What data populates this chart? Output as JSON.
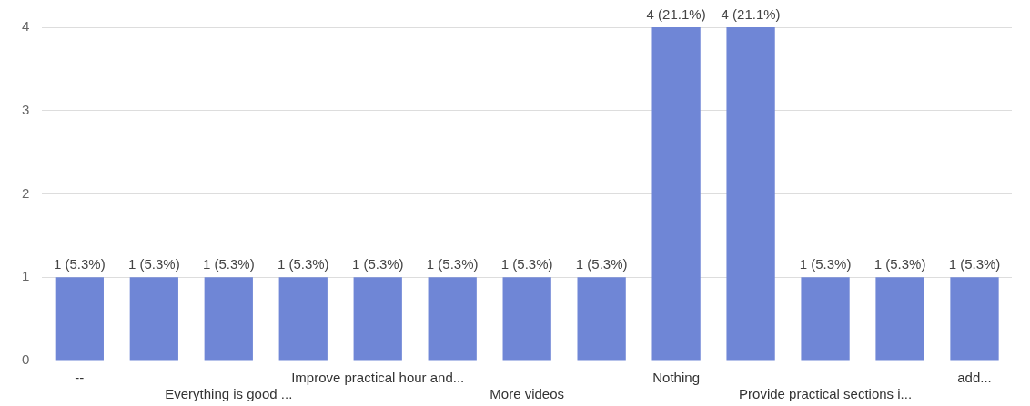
{
  "chart_data": {
    "type": "bar",
    "categories": [
      "--",
      null,
      "Everything is good ...",
      null,
      "Improve practical hour and...",
      null,
      "More videos",
      null,
      "Nothing",
      null,
      "Provide practical sections i...",
      null,
      "add..."
    ],
    "values": [
      1,
      1,
      1,
      1,
      1,
      1,
      1,
      1,
      4,
      4,
      1,
      1,
      1
    ],
    "value_labels": [
      "1 (5.3%)",
      "1 (5.3%)",
      "1 (5.3%)",
      "1 (5.3%)",
      "1 (5.3%)",
      "1 (5.3%)",
      "1 (5.3%)",
      "1 (5.3%)",
      "4 (21.1%)",
      "4 (21.1%)",
      "1 (5.3%)",
      "1 (5.3%)",
      "1 (5.3%)"
    ],
    "color": "#6f86d6",
    "ylim": [
      0,
      4
    ],
    "yticks": [
      0,
      1,
      2,
      3,
      4
    ],
    "grid": "y",
    "legend": false
  }
}
